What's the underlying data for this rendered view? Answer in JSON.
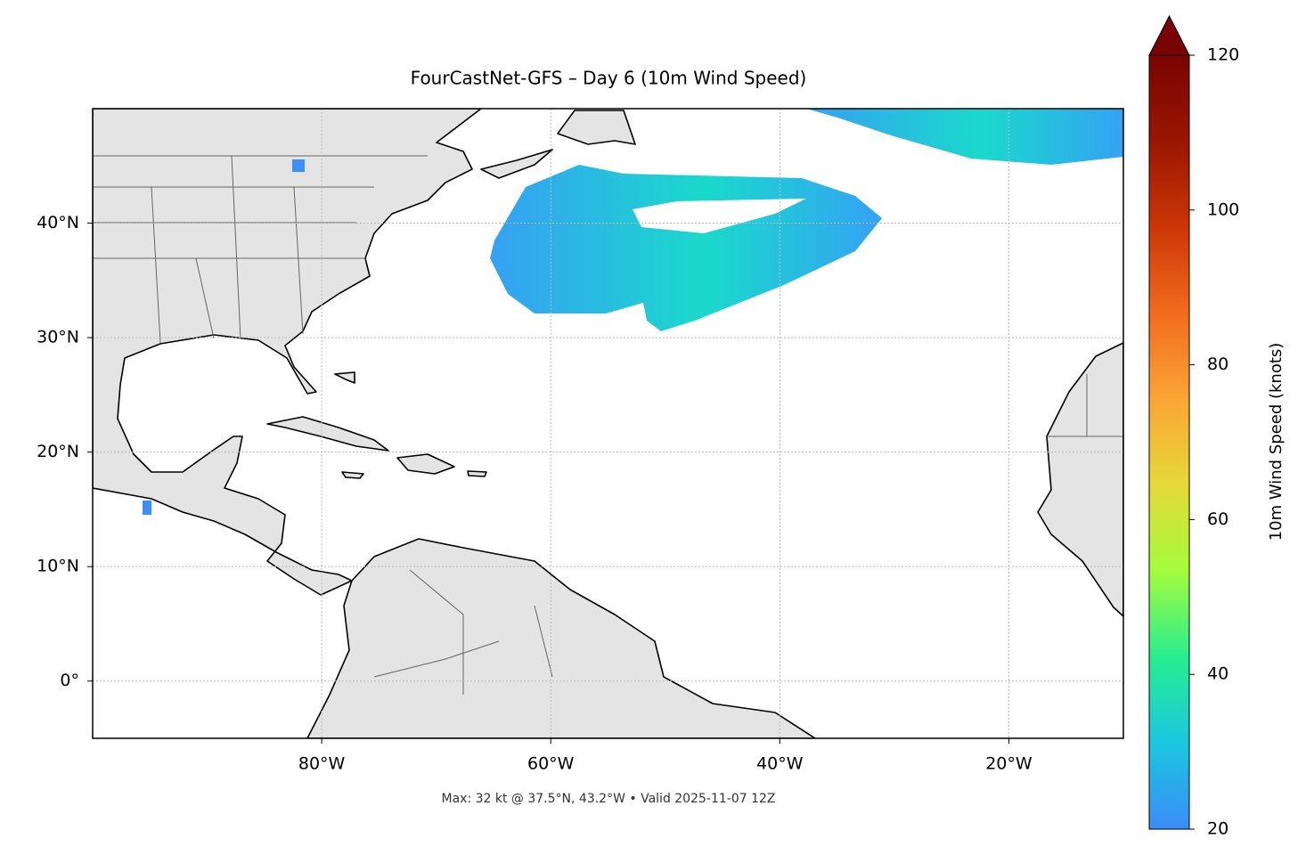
{
  "chart_data": {
    "type": "map",
    "title": "FourCastNet-GFS – Day 6 (10m Wind Speed)",
    "annotation": "Max: 32 kt @ 37.5°N, 43.2°W • Valid 2025-11-07 12Z",
    "xlim": [
      -100,
      -10
    ],
    "ylim": [
      -5,
      50
    ],
    "xticks": [
      {
        "value": -80,
        "label": "80°W"
      },
      {
        "value": -60,
        "label": "60°W"
      },
      {
        "value": -40,
        "label": "40°W"
      },
      {
        "value": -20,
        "label": "20°W"
      }
    ],
    "yticks": [
      {
        "value": 0,
        "label": "0°"
      },
      {
        "value": 10,
        "label": "10°N"
      },
      {
        "value": 20,
        "label": "20°N"
      },
      {
        "value": 30,
        "label": "30°N"
      },
      {
        "value": 40,
        "label": "40°N"
      }
    ],
    "grid": true,
    "colorbar": {
      "label": "10m Wind Speed (knots)",
      "lim": [
        20,
        120
      ],
      "ticks": [
        20,
        40,
        60,
        80,
        100,
        120
      ],
      "colors": [
        "#3b8cf9",
        "#1ac7e0",
        "#27ee8f",
        "#a4fc3c",
        "#e5d938",
        "#fba535",
        "#f26b1e",
        "#cc3606",
        "#9a1602",
        "#7a0403"
      ],
      "extend": "max"
    }
  }
}
